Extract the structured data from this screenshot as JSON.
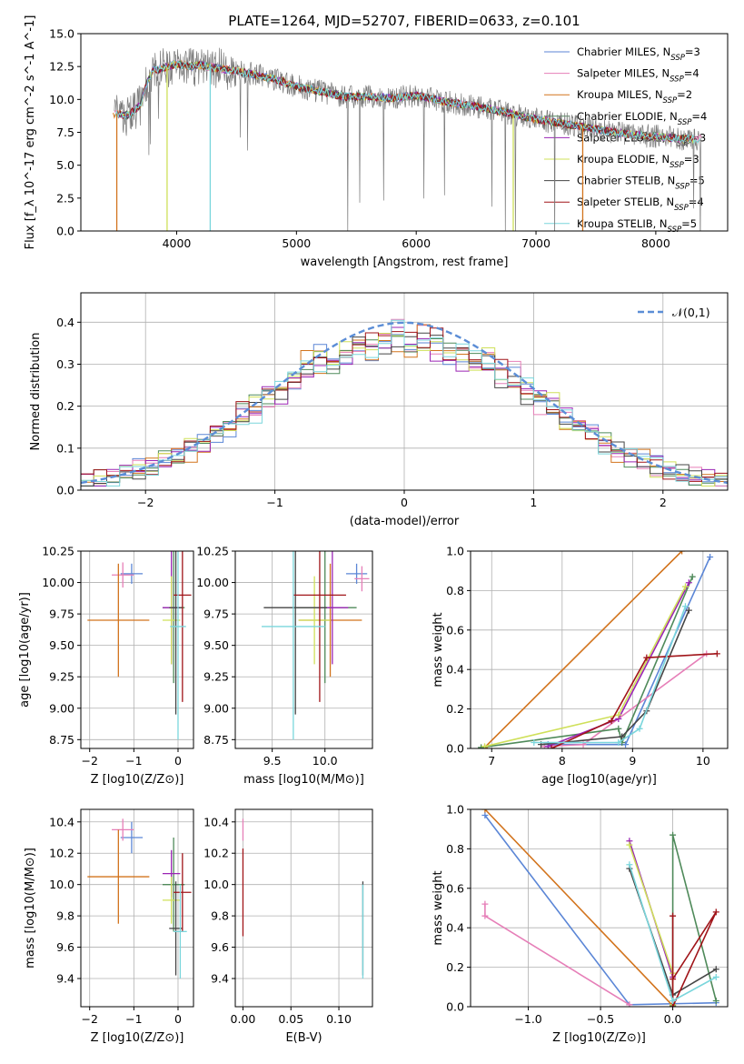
{
  "chart_data": [
    {
      "id": "spectrum",
      "type": "line",
      "title": "PLATE=1264, MJD=52707, FIBERID=0633, z=0.101",
      "xlabel": "wavelength [Angstrom, rest frame]",
      "ylabel": "Flux [f_λ 10^-17 erg cm^-2 s^-1 A^-1]",
      "xlim": [
        3200,
        8600
      ],
      "ylim": [
        0,
        15
      ],
      "xticks": [
        4000,
        5000,
        6000,
        7000,
        8000
      ],
      "yticks": [
        0.0,
        2.5,
        5.0,
        7.5,
        10.0,
        12.5,
        15.0
      ],
      "grid": false,
      "legend_position": "top-right",
      "data_shape_x": [
        3500,
        3600,
        3700,
        3750,
        3800,
        3900,
        4000,
        4100,
        4200,
        4400,
        4600,
        4800,
        5000,
        5200,
        5400,
        5600,
        5800,
        6000,
        6200,
        6400,
        6600,
        6800,
        7000,
        7200,
        7400,
        7600,
        7800,
        8000,
        8200,
        8350
      ],
      "data_shape_y": [
        8.9,
        8.8,
        9.6,
        11.2,
        12.2,
        12.4,
        12.7,
        12.5,
        12.6,
        12.3,
        12.0,
        11.6,
        11.0,
        10.6,
        10.2,
        10.2,
        10.1,
        10.3,
        9.9,
        9.6,
        9.3,
        8.9,
        8.5,
        8.2,
        7.9,
        7.6,
        7.3,
        7.2,
        7.0,
        7.0
      ],
      "series": [
        {
          "name": "Chabrier MILES, N_SSP=3",
          "color": "#5b86d6"
        },
        {
          "name": "Salpeter MILES, N_SSP=4",
          "color": "#e67fb8"
        },
        {
          "name": "Kroupa MILES, N_SSP=2",
          "color": "#d2731c"
        },
        {
          "name": "Chabrier ELODIE, N_SSP=4",
          "color": "#4f8a5a"
        },
        {
          "name": "Salpeter ELODIE, N_SSP=3",
          "color": "#9a24b4"
        },
        {
          "name": "Kroupa ELODIE, N_SSP=3",
          "color": "#cfe05a"
        },
        {
          "name": "Chabrier STELIB, N_SSP=5",
          "color": "#454545"
        },
        {
          "name": "Salpeter STELIB, N_SSP=4",
          "color": "#a01419"
        },
        {
          "name": "Kroupa STELIB, N_SSP=5",
          "color": "#7ad6dc"
        }
      ],
      "legend": [
        {
          "model": "Chabrier MILES, N",
          "sub": "SSP",
          "val": "=3"
        },
        {
          "model": "Salpeter MILES, N",
          "sub": "SSP",
          "val": "=4"
        },
        {
          "model": "Kroupa MILES, N",
          "sub": "SSP",
          "val": "=2"
        },
        {
          "model": "Chabrier ELODIE, N",
          "sub": "SSP",
          "val": "=4"
        },
        {
          "model": "Salpeter ELODIE, N",
          "sub": "SSP",
          "val": "=3"
        },
        {
          "model": "Kroupa ELODIE, N",
          "sub": "SSP",
          "val": "=3"
        },
        {
          "model": "Chabrier STELIB, N",
          "sub": "SSP",
          "val": "=5"
        },
        {
          "model": "Salpeter STELIB, N",
          "sub": "SSP",
          "val": "=4"
        },
        {
          "model": "Kroupa STELIB, N",
          "sub": "SSP",
          "val": "=5"
        }
      ]
    },
    {
      "id": "residuals",
      "type": "histogram",
      "xlabel": "(data-model)/error",
      "ylabel": "Normed distribution",
      "xlim": [
        -2.5,
        2.5
      ],
      "ylim": [
        0,
        0.47
      ],
      "xticks": [
        -2,
        -1,
        0,
        1,
        2
      ],
      "yticks": [
        0.0,
        0.1,
        0.2,
        0.3,
        0.4
      ],
      "grid": true,
      "legend_position": "top-right",
      "reference_curve": {
        "name": "𝒩(0,1)",
        "color": "#5b8dd6",
        "style": "dashed"
      },
      "bin_width": 0.1
    },
    {
      "id": "age_vs_Z",
      "type": "scatter",
      "xlabel": "Z [log10(Z/Z⊙)]",
      "ylabel": "age  [log10(age/yr)]",
      "xlim": [
        -2.2,
        0.35
      ],
      "ylim": [
        8.68,
        10.25
      ],
      "xticks": [
        -2,
        -1,
        0
      ],
      "yticks": [
        8.75,
        9.0,
        9.25,
        9.5,
        9.75,
        10.0,
        10.25
      ],
      "grid": true,
      "points": [
        {
          "x": -1.05,
          "y": 10.07,
          "xerr": 0.25,
          "yerr": 0.08,
          "color": "#5b86d6"
        },
        {
          "x": -1.25,
          "y": 10.06,
          "xerr": 0.25,
          "yerr": 0.1,
          "color": "#e67fb8"
        },
        {
          "x": -1.35,
          "y": 9.7,
          "xerr": 0.7,
          "yerr": 0.45,
          "color": "#d2731c"
        },
        {
          "x": -0.1,
          "y": 9.8,
          "xerr": 0.25,
          "yerr": 0.6,
          "color": "#4f8a5a"
        },
        {
          "x": -0.15,
          "y": 9.8,
          "xerr": 0.2,
          "yerr": 0.45,
          "color": "#9a24b4"
        },
        {
          "x": -0.15,
          "y": 9.7,
          "xerr": 0.2,
          "yerr": 0.35,
          "color": "#cfe05a"
        },
        {
          "x": -0.05,
          "y": 9.8,
          "xerr": 0.15,
          "yerr": 0.85,
          "color": "#454545"
        },
        {
          "x": 0.1,
          "y": 9.9,
          "xerr": 0.2,
          "yerr": 0.85,
          "color": "#a01419"
        },
        {
          "x": 0.0,
          "y": 9.65,
          "xerr": 0.18,
          "yerr": 0.9,
          "color": "#7ad6dc"
        }
      ]
    },
    {
      "id": "age_vs_mass",
      "type": "scatter",
      "xlabel": "mass [log10(M/M⊙)]",
      "ylabel": "",
      "xlim": [
        9.15,
        10.45
      ],
      "ylim": [
        8.68,
        10.25
      ],
      "xticks": [
        9.5,
        10.0
      ],
      "yticks": [
        8.75,
        9.0,
        9.25,
        9.5,
        9.75,
        10.0,
        10.25
      ],
      "grid": true,
      "points": [
        {
          "x": 10.3,
          "y": 10.07,
          "xerr": 0.1,
          "yerr": 0.08,
          "color": "#5b86d6"
        },
        {
          "x": 10.35,
          "y": 10.03,
          "xerr": 0.07,
          "yerr": 0.1,
          "color": "#e67fb8"
        },
        {
          "x": 10.05,
          "y": 9.7,
          "xerr": 0.3,
          "yerr": 0.45,
          "color": "#d2731c"
        },
        {
          "x": 10.0,
          "y": 9.8,
          "xerr": 0.3,
          "yerr": 0.6,
          "color": "#4f8a5a"
        },
        {
          "x": 10.07,
          "y": 9.8,
          "xerr": 0.15,
          "yerr": 0.45,
          "color": "#9a24b4"
        },
        {
          "x": 9.9,
          "y": 9.7,
          "xerr": 0.15,
          "yerr": 0.35,
          "color": "#cfe05a"
        },
        {
          "x": 9.72,
          "y": 9.8,
          "xerr": 0.3,
          "yerr": 0.85,
          "color": "#454545"
        },
        {
          "x": 9.95,
          "y": 9.9,
          "xerr": 0.25,
          "yerr": 0.85,
          "color": "#a01419"
        },
        {
          "x": 9.7,
          "y": 9.65,
          "xerr": 0.3,
          "yerr": 0.9,
          "color": "#7ad6dc"
        }
      ]
    },
    {
      "id": "weight_vs_age",
      "type": "line",
      "xlabel": "age  [log10(age/yr)]",
      "ylabel": "mass weight",
      "xlim": [
        6.7,
        10.35
      ],
      "ylim": [
        0,
        1
      ],
      "xticks": [
        7,
        8,
        9,
        10
      ],
      "yticks": [
        0.0,
        0.2,
        0.4,
        0.6,
        0.8,
        1.0
      ],
      "grid": true,
      "series": [
        {
          "color": "#5b86d6",
          "x": [
            7.8,
            8.9,
            10.1
          ],
          "y": [
            0.02,
            0.02,
            0.97
          ]
        },
        {
          "color": "#e67fb8",
          "x": [
            7.75,
            8.3,
            10.05
          ],
          "y": [
            0.01,
            0.02,
            0.48
          ]
        },
        {
          "color": "#d2731c",
          "x": [
            6.9,
            9.7
          ],
          "y": [
            0.005,
            1.0
          ]
        },
        {
          "color": "#4f8a5a",
          "x": [
            6.85,
            8.8,
            8.85,
            9.85
          ],
          "y": [
            0.005,
            0.1,
            0.03,
            0.87
          ]
        },
        {
          "color": "#9a24b4",
          "x": [
            7.8,
            8.8,
            9.8
          ],
          "y": [
            0.01,
            0.15,
            0.84
          ]
        },
        {
          "color": "#cfe05a",
          "x": [
            6.9,
            8.8,
            9.75
          ],
          "y": [
            0.01,
            0.17,
            0.82
          ]
        },
        {
          "color": "#454545",
          "x": [
            7.7,
            8.85,
            9.2,
            9.8
          ],
          "y": [
            0.02,
            0.06,
            0.19,
            0.7
          ]
        },
        {
          "color": "#a01419",
          "x": [
            7.85,
            8.7,
            9.2,
            10.2
          ],
          "y": [
            0.0,
            0.14,
            0.46,
            0.48
          ]
        },
        {
          "color": "#7ad6dc",
          "x": [
            7.6,
            8.8,
            9.1,
            9.75
          ],
          "y": [
            0.03,
            0.03,
            0.1,
            0.72
          ]
        }
      ]
    },
    {
      "id": "mass_vs_Z",
      "type": "scatter",
      "xlabel": "Z [log10(Z/Z⊙)]",
      "ylabel": "mass [log10(M/M⊙)]",
      "xlim": [
        -2.2,
        0.35
      ],
      "ylim": [
        9.22,
        10.48
      ],
      "xticks": [
        -2,
        -1,
        0
      ],
      "yticks": [
        9.4,
        9.6,
        9.8,
        10.0,
        10.2,
        10.4
      ],
      "grid": true,
      "points": [
        {
          "x": -1.05,
          "y": 10.3,
          "xerr": 0.25,
          "yerr": 0.1,
          "color": "#5b86d6"
        },
        {
          "x": -1.25,
          "y": 10.35,
          "xerr": 0.25,
          "yerr": 0.07,
          "color": "#e67fb8"
        },
        {
          "x": -1.35,
          "y": 10.05,
          "xerr": 0.7,
          "yerr": 0.3,
          "color": "#d2731c"
        },
        {
          "x": -0.1,
          "y": 10.0,
          "xerr": 0.25,
          "yerr": 0.3,
          "color": "#4f8a5a"
        },
        {
          "x": -0.15,
          "y": 10.07,
          "xerr": 0.2,
          "yerr": 0.15,
          "color": "#9a24b4"
        },
        {
          "x": -0.15,
          "y": 9.9,
          "xerr": 0.2,
          "yerr": 0.15,
          "color": "#cfe05a"
        },
        {
          "x": -0.05,
          "y": 9.72,
          "xerr": 0.15,
          "yerr": 0.3,
          "color": "#454545"
        },
        {
          "x": 0.1,
          "y": 9.95,
          "xerr": 0.2,
          "yerr": 0.25,
          "color": "#a01419"
        },
        {
          "x": 0.05,
          "y": 9.7,
          "xerr": 0.15,
          "yerr": 0.3,
          "color": "#7ad6dc"
        }
      ]
    },
    {
      "id": "mass_vs_EBV",
      "type": "scatter",
      "xlabel": "E(B-V)",
      "ylabel": "",
      "xlim": [
        -0.008,
        0.135
      ],
      "ylim": [
        9.22,
        10.48
      ],
      "xticks": [
        0.0,
        0.05,
        0.1
      ],
      "yticks": [
        9.4,
        9.6,
        9.8,
        10.0,
        10.2,
        10.4
      ],
      "grid": true,
      "points": [
        {
          "x": 0.0,
          "y": 10.35,
          "xerr": 0,
          "yerr": 0.07,
          "color": "#e67fb8"
        },
        {
          "x": 0.0,
          "y": 9.95,
          "xerr": 0,
          "yerr": 0.28,
          "color": "#a01419"
        },
        {
          "x": 0.125,
          "y": 9.72,
          "xerr": 0,
          "yerr": 0.3,
          "color": "#454545"
        },
        {
          "x": 0.125,
          "y": 9.7,
          "xerr": 0,
          "yerr": 0.3,
          "color": "#7ad6dc"
        }
      ]
    },
    {
      "id": "weight_vs_Z",
      "type": "line",
      "xlabel": "Z [log10(Z/Z⊙)]",
      "ylabel": "mass weight",
      "xlim": [
        -1.4,
        0.38
      ],
      "ylim": [
        0,
        1
      ],
      "xticks": [
        -1.0,
        -0.5,
        0.0
      ],
      "yticks": [
        0.0,
        0.2,
        0.4,
        0.6,
        0.8,
        1.0
      ],
      "grid": true,
      "series": [
        {
          "color": "#5b86d6",
          "x": [
            -1.3,
            -0.3,
            0.3
          ],
          "y": [
            0.97,
            0.01,
            0.02
          ]
        },
        {
          "color": "#e67fb8",
          "x": [
            -1.3,
            -1.3,
            -0.3
          ],
          "y": [
            0.52,
            0.46,
            0.01
          ]
        },
        {
          "color": "#d2731c",
          "x": [
            -1.3,
            0.0
          ],
          "y": [
            1.0,
            0.005
          ]
        },
        {
          "color": "#4f8a5a",
          "x": [
            0.0,
            0.0,
            0.3
          ],
          "y": [
            0.005,
            0.87,
            0.03
          ]
        },
        {
          "color": "#9a24b4",
          "x": [
            -0.3,
            0.0,
            0.0
          ],
          "y": [
            0.84,
            0.15,
            0.01
          ]
        },
        {
          "color": "#cfe05a",
          "x": [
            -0.3,
            0.0,
            0.0
          ],
          "y": [
            0.82,
            0.17,
            0.01
          ]
        },
        {
          "color": "#454545",
          "x": [
            -0.3,
            0.0,
            0.3
          ],
          "y": [
            0.7,
            0.06,
            0.19
          ]
        },
        {
          "color": "#a01419",
          "x": [
            0.0,
            0.0,
            0.3,
            0.0
          ],
          "y": [
            0.46,
            0.0,
            0.48,
            0.14
          ]
        },
        {
          "color": "#7ad6dc",
          "x": [
            -0.3,
            0.0,
            0.3
          ],
          "y": [
            0.72,
            0.03,
            0.15
          ]
        }
      ]
    }
  ]
}
